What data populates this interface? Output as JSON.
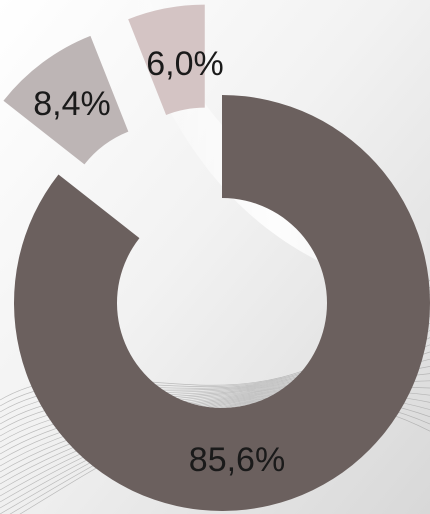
{
  "chart_data": {
    "type": "donut",
    "values": [
      85.6,
      8.4,
      6.0
    ],
    "value_labels": [
      "85,6%",
      "8,4%",
      "6,0%"
    ],
    "colors": [
      "#6b605e",
      "#bdb5b5",
      "#d4c4c4"
    ]
  }
}
